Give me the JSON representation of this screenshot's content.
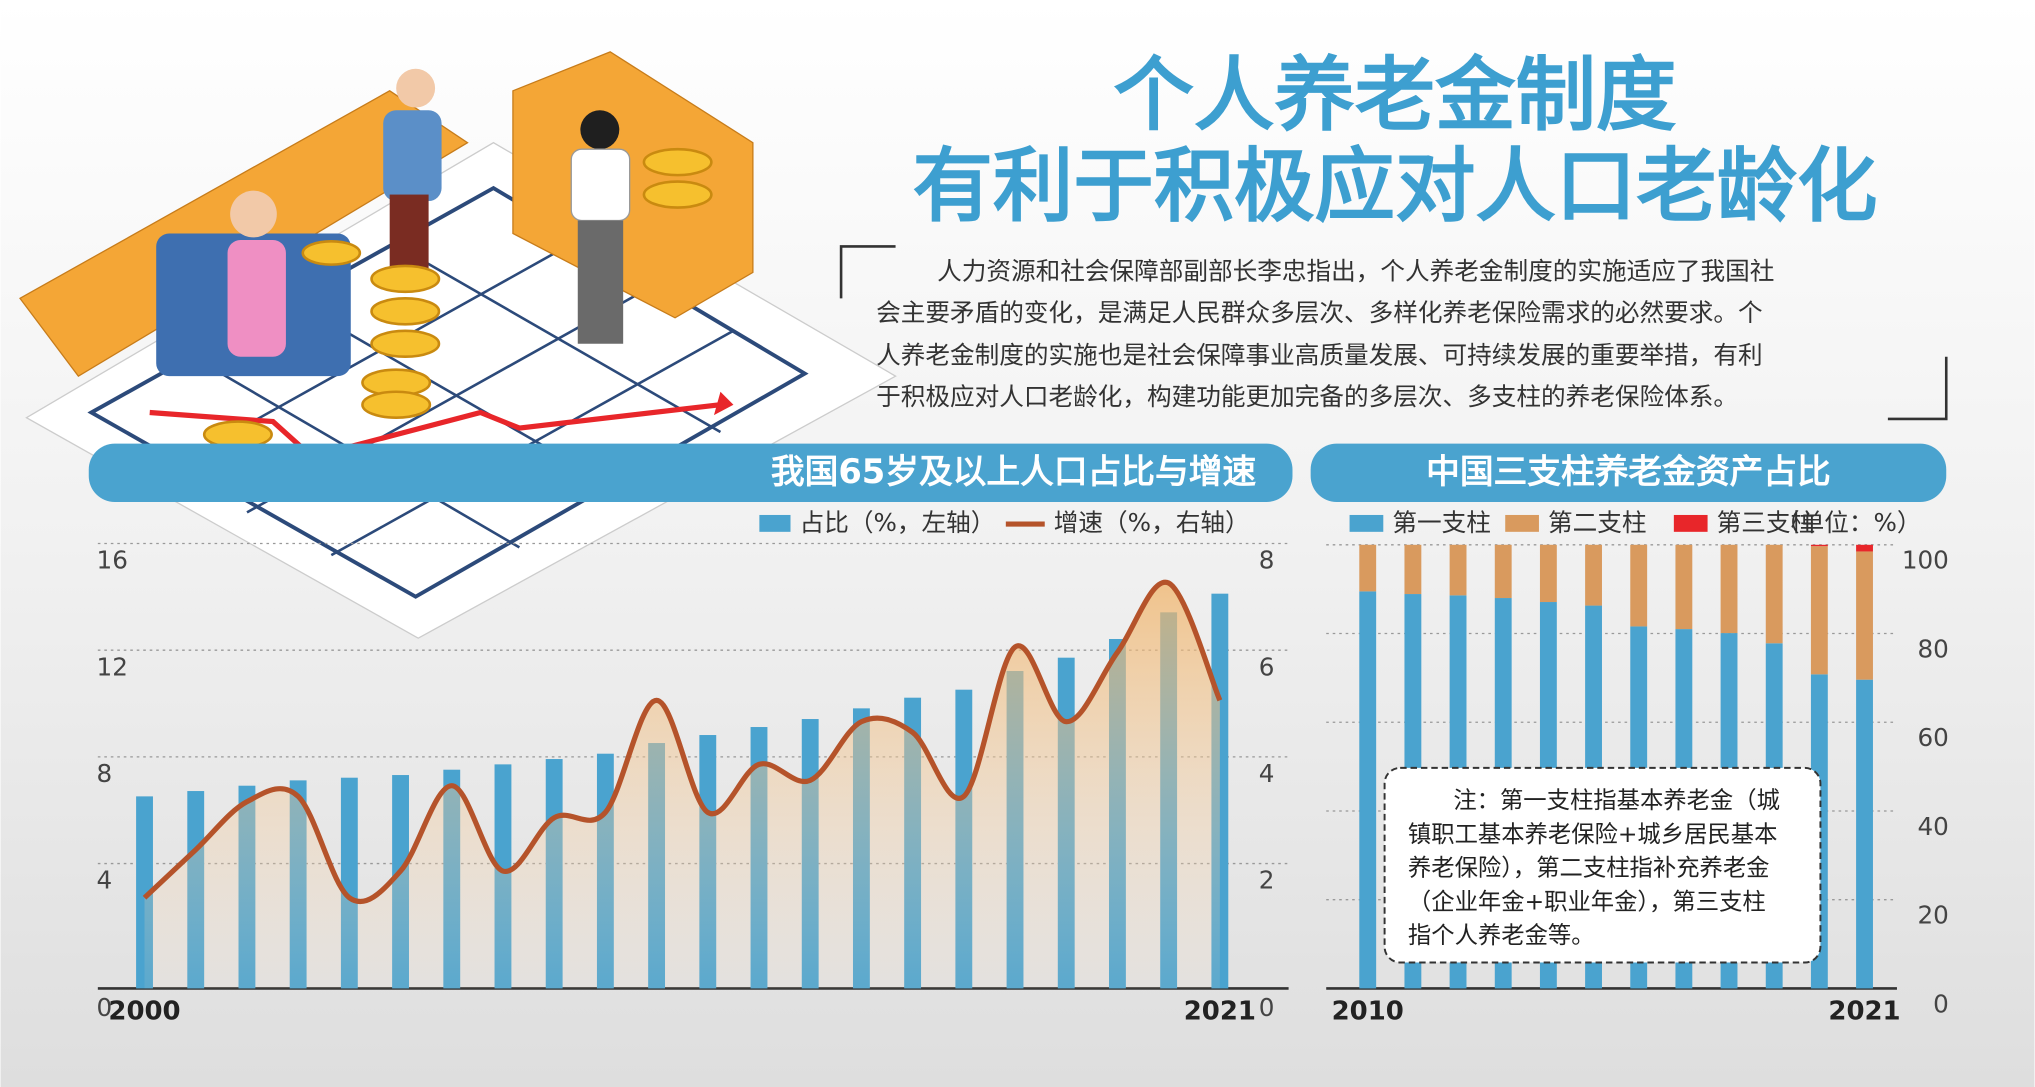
{
  "header": {
    "title_lines": [
      "个人养老金制度",
      "有利于积极应对人口老龄化"
    ],
    "paragraph_lines": [
      "人力资源和社会保障部副部长李忠指出，个人养老金制度的实施适应了我国社",
      "会主要矛盾的变化，是满足人民群众多层次、多样化养老保险需求的必然要求。个",
      "人养老金制度的实施也是社会保障事业高质量发展、可持续发展的重要举措，有利",
      "于积极应对人口老龄化，构建功能更加完备的多层次、多支柱的养老保险体系。"
    ]
  },
  "chart_data": [
    {
      "type": "combo",
      "title": "我国65岁及以上人口占比与增速",
      "categories": [
        "2000",
        null,
        null,
        null,
        null,
        null,
        null,
        null,
        null,
        null,
        null,
        null,
        null,
        null,
        null,
        null,
        null,
        null,
        null,
        null,
        null,
        "2021"
      ],
      "series": [
        {
          "name": "占比（%，左轴）",
          "type": "bar",
          "color": "#4aa3cf",
          "values": [
            7.2,
            7.4,
            7.6,
            7.8,
            7.9,
            8.0,
            8.2,
            8.4,
            8.6,
            8.8,
            9.2,
            9.5,
            9.8,
            10.1,
            10.5,
            10.9,
            11.2,
            11.9,
            12.4,
            13.1,
            14.1,
            14.8
          ]
        },
        {
          "name": "增速（%，右轴）",
          "type": "line",
          "axis": "y2",
          "color": "#b5532a",
          "values": [
            1.7,
            2.6,
            3.5,
            3.6,
            1.7,
            2.2,
            3.8,
            2.2,
            3.2,
            3.3,
            5.4,
            3.3,
            4.2,
            3.9,
            5.0,
            4.8,
            3.6,
            6.4,
            5.0,
            6.3,
            7.6,
            5.4
          ]
        }
      ],
      "ylim": [
        0,
        16
      ],
      "yticks": [
        0,
        4,
        8,
        12,
        16
      ],
      "y2lim": [
        0,
        8
      ],
      "y2ticks": [
        0,
        2,
        4,
        6,
        8
      ],
      "grid": true
    },
    {
      "type": "stacked_bar",
      "title": "中国三支柱养老金资产占比",
      "categories": [
        "2010",
        null,
        null,
        null,
        null,
        null,
        null,
        null,
        null,
        null,
        null,
        "2021"
      ],
      "series": [
        {
          "name": "第一支柱",
          "color": "#4aa3cf",
          "values": [
            89.5,
            88.9,
            88.6,
            88.0,
            87.1,
            86.3,
            81.6,
            81.0,
            80.1,
            77.8,
            70.8,
            69.6
          ]
        },
        {
          "name": "第二支柱",
          "color": "#d99a5e",
          "values": [
            10.5,
            11.1,
            11.4,
            12.0,
            12.9,
            13.7,
            18.4,
            19.0,
            19.9,
            22.2,
            28.9,
            28.9
          ]
        },
        {
          "name": "第三支柱",
          "color": "#e8262a",
          "values": [
            0,
            0,
            0,
            0,
            0,
            0,
            0,
            0,
            0,
            0,
            0.3,
            1.5
          ]
        }
      ],
      "unit_label": "（单位：%）",
      "ylim": [
        0,
        100
      ],
      "yticks": [
        0,
        20,
        40,
        60,
        80,
        100
      ],
      "grid": true,
      "annotation_lines": [
        "注：第一支柱指基本养老金（城",
        "镇职工基本养老保险+城乡居民基本",
        "养老保险），第二支柱指补充养老金",
        "（企业年金+职业年金），第三支柱",
        "指个人养老金等。"
      ]
    }
  ]
}
